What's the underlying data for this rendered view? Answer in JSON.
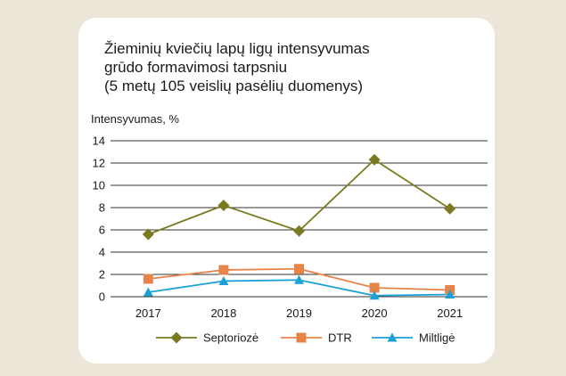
{
  "chart_data": {
    "type": "line",
    "title": "Žieminių kviečių lapų ligų intensyvumas",
    "title_line2": "grūdo formavimosi tarpsniu",
    "subtitle": "(5 metų 105 veislių pasėlių duomenys)",
    "ylabel": "Intensyvumas, %",
    "xlabel": "",
    "categories": [
      "2017",
      "2018",
      "2019",
      "2020",
      "2021"
    ],
    "y_ticks": [
      "0",
      "2",
      "4",
      "6",
      "8",
      "10",
      "12",
      "14"
    ],
    "ylim": [
      0,
      14
    ],
    "grid": "horizontal",
    "legend_position": "bottom",
    "series": [
      {
        "name": "Septoriozė",
        "values": [
          5.6,
          8.2,
          5.9,
          12.3,
          7.9
        ],
        "color": "#7a7a22",
        "marker": "diamond"
      },
      {
        "name": "DTR",
        "values": [
          1.6,
          2.4,
          2.5,
          0.8,
          0.6
        ],
        "color": "#e8844a",
        "marker": "square"
      },
      {
        "name": "Miltligė",
        "values": [
          0.4,
          1.4,
          1.5,
          0.1,
          0.2
        ],
        "color": "#1ba1d8",
        "marker": "triangle"
      }
    ]
  }
}
